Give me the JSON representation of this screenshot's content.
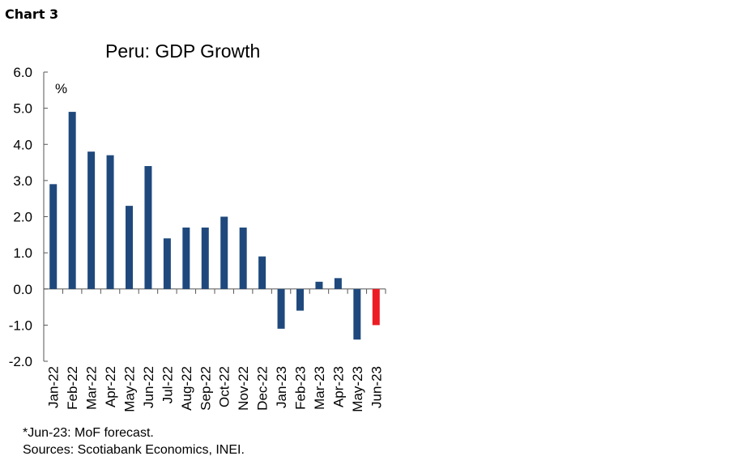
{
  "chart_label": "Chart 3",
  "chart_data": {
    "type": "bar",
    "title": "Peru: GDP Growth",
    "ylabel": "%",
    "xlabel": "",
    "ylim": [
      -2.0,
      6.0
    ],
    "yticks": [
      "6.0",
      "5.0",
      "4.0",
      "3.0",
      "2.0",
      "1.0",
      "0.0",
      "-1.0",
      "-2.0"
    ],
    "grid": false,
    "categories": [
      "Jan-22",
      "Feb-22",
      "Mar-22",
      "Apr-22",
      "May-22",
      "Jun-22",
      "Jul-22",
      "Aug-22",
      "Sep-22",
      "Oct-22",
      "Nov-22",
      "Dec-22",
      "Jan-23",
      "Feb-23",
      "Mar-23",
      "Apr-23",
      "May-23",
      "Jun-23"
    ],
    "values": [
      2.9,
      4.9,
      3.8,
      3.7,
      2.3,
      3.4,
      1.4,
      1.7,
      1.7,
      2.0,
      1.7,
      0.9,
      -1.1,
      -0.6,
      0.2,
      0.3,
      -1.4,
      -1.0
    ],
    "colors": {
      "actual": "#1f497d",
      "forecast": "#ed1c24"
    },
    "forecast_categories": [
      "Jun-23"
    ]
  },
  "footnotes": {
    "forecast_note": "*Jun-23: MoF forecast.",
    "sources": "Sources: Scotiabank Economics, INEI."
  }
}
